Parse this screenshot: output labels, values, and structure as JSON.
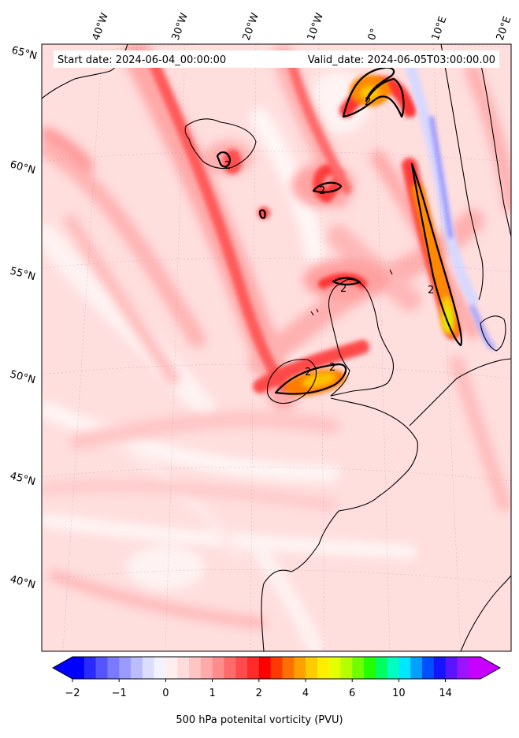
{
  "header": {
    "start_date": "Start date: 2024-06-04_00:00:00",
    "valid_date": "Valid_date: 2024-06-05T03:00:00.00"
  },
  "lon_labels": [
    "40°W",
    "30°W",
    "20°W",
    "10°W",
    "0°",
    "10°E",
    "20°E"
  ],
  "lat_labels": [
    "65°N",
    "60°N",
    "55°N",
    "50°N",
    "45°N",
    "40°N"
  ],
  "contour_labels": [
    "2",
    "2",
    "2",
    "2",
    "2",
    "2",
    "2"
  ],
  "colorbar": {
    "title": "500 hPa potenital vorticity (PVU)",
    "ticks": [
      "−2",
      "−1",
      "0",
      "1",
      "2",
      "4",
      "6",
      "10",
      "14"
    ],
    "colors": [
      "#0000ff",
      "#2a2aff",
      "#5555ff",
      "#7a7aff",
      "#9a9aff",
      "#bbbbff",
      "#dcdcff",
      "#f3f3ff",
      "#ffeeee",
      "#ffdcdc",
      "#ffc4c4",
      "#ffaaaa",
      "#ff8c8c",
      "#ff6b6b",
      "#ff4b4b",
      "#ff2a2a",
      "#ff0000",
      "#ff3a00",
      "#ff7000",
      "#ffa000",
      "#ffcc00",
      "#ffee00",
      "#e6ff00",
      "#b4ff00",
      "#70ff00",
      "#22ff00",
      "#00ff60",
      "#00ffc0",
      "#00e8ff",
      "#00a0ff",
      "#0050ff",
      "#1414ff",
      "#5a14ff",
      "#9a14ff",
      "#c800ff"
    ]
  },
  "colors": {
    "background_pv": "#ffdede",
    "coast": "#000000"
  }
}
